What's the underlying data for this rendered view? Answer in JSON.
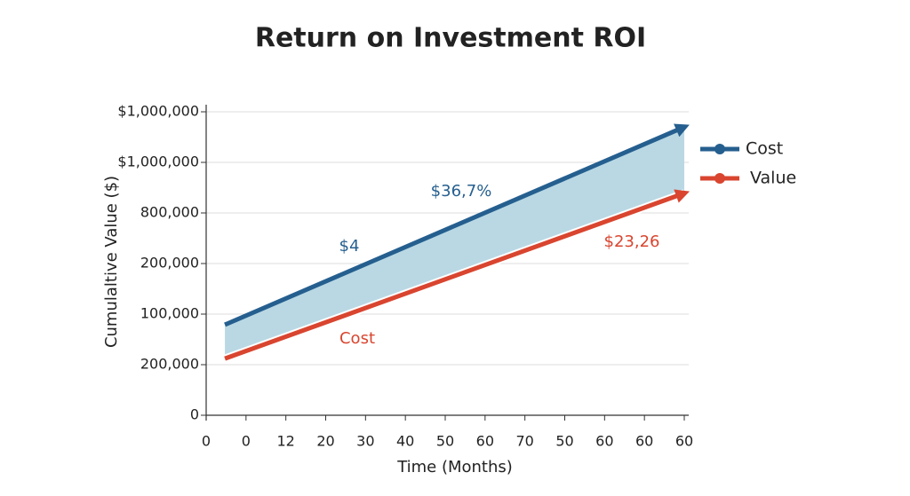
{
  "chart_data": {
    "type": "line",
    "title": "Return on Investment ROI",
    "x_label": "Time (Months)",
    "y_label": "Cumulaltive Value ($)",
    "xlim": [
      0,
      12
    ],
    "ylim": [
      0,
      6
    ],
    "xticks": [
      {
        "value": 0,
        "label": "0"
      },
      {
        "value": 1,
        "label": "0"
      },
      {
        "value": 2,
        "label": "12"
      },
      {
        "value": 3,
        "label": "20"
      },
      {
        "value": 4,
        "label": "30"
      },
      {
        "value": 5,
        "label": "40"
      },
      {
        "value": 6,
        "label": "50"
      },
      {
        "value": 7,
        "label": "60"
      },
      {
        "value": 8,
        "label": "70"
      },
      {
        "value": 9,
        "label": "50"
      },
      {
        "value": 10,
        "label": "60"
      },
      {
        "value": 11,
        "label": "60"
      },
      {
        "value": 12,
        "label": "60"
      }
    ],
    "yticks": [
      {
        "value": 0,
        "label": "0"
      },
      {
        "value": 1,
        "label": "200,000"
      },
      {
        "value": 2,
        "label": "100,000"
      },
      {
        "value": 3,
        "label": "200,000"
      },
      {
        "value": 4,
        "label": "800,000"
      },
      {
        "value": 5,
        "label": "$1,000,000"
      },
      {
        "value": 6,
        "label": "$1,000,000"
      }
    ],
    "grid": true,
    "legend": "upper right",
    "fill_between": "#b9d8e4",
    "x": [
      0.47,
      12
    ],
    "series": [
      {
        "name": "Cost",
        "color": "#255f8f",
        "values": [
          1.79,
          5.7
        ]
      },
      {
        "name": "Value",
        "color": "#d9452f",
        "values": [
          1.12,
          4.39
        ]
      }
    ],
    "annotations": [
      {
        "text": "$36,7%",
        "color": "#255f8f"
      },
      {
        "text": "$4",
        "color": "#255f8f"
      },
      {
        "text": "$23,26",
        "color": "#d9452f"
      },
      {
        "text": "Cost",
        "color": "#d9452f"
      }
    ]
  }
}
